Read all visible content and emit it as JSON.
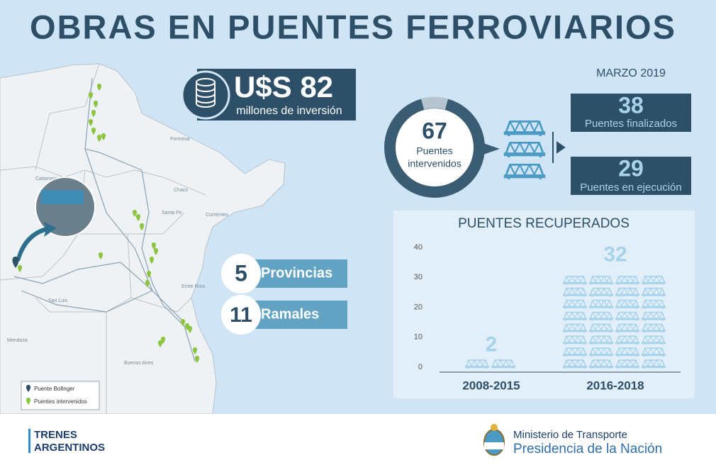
{
  "header": {
    "title": "OBRAS EN PUENTES FERROVIARIOS"
  },
  "investment": {
    "amount": "U$S 82",
    "label": "millones de inversión"
  },
  "date": "MARZO 2019",
  "summary": {
    "total": 67,
    "total_label": [
      "Puentes",
      "intervenidos"
    ]
  },
  "status": [
    {
      "value": 38,
      "label": "Puentes finalizados"
    },
    {
      "value": 29,
      "label": "Puentes en ejecución"
    }
  ],
  "counts": [
    {
      "value": 5,
      "label": "Provincias"
    },
    {
      "value": 11,
      "label": "Ramales"
    }
  ],
  "map": {
    "labels": [
      "Catamarca",
      "Chaco",
      "Formosa",
      "Corrientes",
      "Santa Fe",
      "Entre Ríos",
      "San Luis",
      "Mendoza",
      "Buenos Aires"
    ],
    "legend": [
      "Puente Bofinger",
      "Puentes intervenidos"
    ]
  },
  "chart_data": {
    "type": "pictogram",
    "title": "PUENTES RECUPERADOS",
    "categories": [
      "2008-2015",
      "2016-2018"
    ],
    "values": [
      2,
      32
    ],
    "color": "#a7d3ea",
    "ylim": [
      0,
      40
    ],
    "yticks": [
      0,
      10,
      20,
      30,
      40
    ]
  },
  "footer": {
    "brand": [
      "TRENES",
      "ARGENTINOS"
    ],
    "ministry": "Ministerio de Transporte",
    "presidency": "Presidencia de la Nación"
  }
}
